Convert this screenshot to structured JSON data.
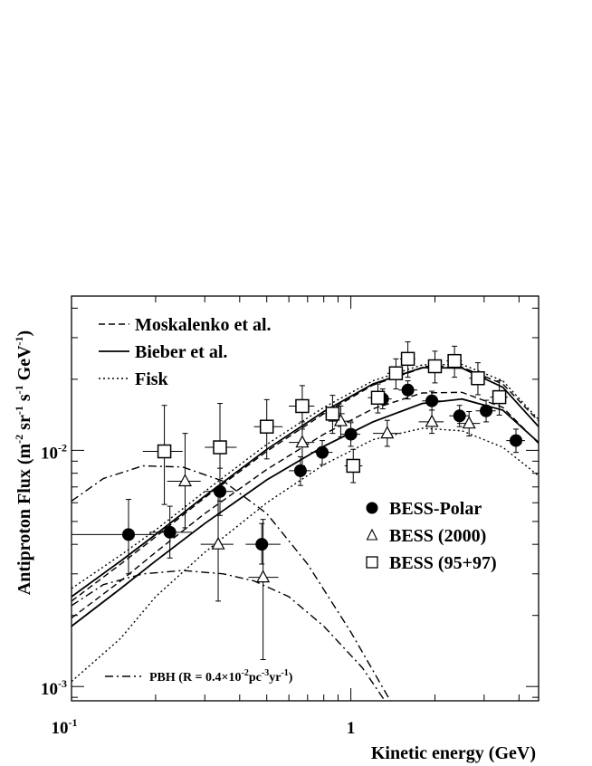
{
  "chart_data": {
    "type": "scatter",
    "title": "",
    "xlabel": "Kinetic energy (GeV)",
    "ylabel": "Antiproton Flux (m-2 sr-1 s-1 GeV-1)",
    "xscale": "log",
    "yscale": "log",
    "xlim": [
      0.1,
      4.7
    ],
    "ylim": [
      0.00087,
      0.045
    ],
    "x_ticks": [
      {
        "value": 0.1,
        "base": "10",
        "exp": "-1"
      },
      {
        "value": 1,
        "base": "1",
        "exp": ""
      }
    ],
    "y_ticks": [
      {
        "value": 0.01,
        "base": "10",
        "exp": "-2"
      },
      {
        "value": 0.001,
        "base": "10",
        "exp": "-3"
      }
    ],
    "grid": false,
    "legend_models": [
      {
        "label": "Moskalenko et al.",
        "style": "dashed"
      },
      {
        "label": "Bieber et al.",
        "style": "solid"
      },
      {
        "label": "Fisk",
        "style": "dotted"
      }
    ],
    "legend_data": [
      {
        "label": "BESS-Polar",
        "marker": "filled-circle"
      },
      {
        "label": "BESS (2000)",
        "marker": "open-triangle"
      },
      {
        "label": "BESS (95+97)",
        "marker": "open-square"
      }
    ],
    "pbh_label": "PBH (R = 0.4×10-2pc-3yr-1)",
    "series": [
      {
        "name": "BESS-Polar",
        "marker": "filled-circle",
        "points": [
          {
            "x": 0.16,
            "y": 0.0044,
            "xlo": 0.1,
            "xhi": 0.2,
            "ylo": 0.003,
            "yhi": 0.0062
          },
          {
            "x": 0.225,
            "y": 0.0045,
            "xlo": 0.19,
            "xhi": 0.27,
            "ylo": 0.0035,
            "yhi": 0.0058
          },
          {
            "x": 0.34,
            "y": 0.0067,
            "xlo": 0.3,
            "xhi": 0.38,
            "ylo": 0.0053,
            "yhi": 0.0084
          },
          {
            "x": 0.48,
            "y": 0.004,
            "xlo": 0.42,
            "xhi": 0.56,
            "ylo": 0.0033,
            "yhi": 0.0049
          },
          {
            "x": 0.66,
            "y": 0.0082,
            "xlo": 0.6,
            "xhi": 0.72,
            "ylo": 0.0071,
            "yhi": 0.0094
          },
          {
            "x": 0.79,
            "y": 0.0098,
            "xlo": 0.72,
            "xhi": 0.86,
            "ylo": 0.0087,
            "yhi": 0.011
          },
          {
            "x": 1.0,
            "y": 0.0117,
            "xlo": 0.92,
            "xhi": 1.08,
            "ylo": 0.0104,
            "yhi": 0.0131
          },
          {
            "x": 1.3,
            "y": 0.0165,
            "xlo": 1.2,
            "xhi": 1.4,
            "ylo": 0.015,
            "yhi": 0.0182
          },
          {
            "x": 1.6,
            "y": 0.018,
            "xlo": 1.48,
            "xhi": 1.73,
            "ylo": 0.0165,
            "yhi": 0.0197
          },
          {
            "x": 1.95,
            "y": 0.0162,
            "xlo": 1.8,
            "xhi": 2.1,
            "ylo": 0.0148,
            "yhi": 0.0178
          },
          {
            "x": 2.45,
            "y": 0.014,
            "xlo": 2.25,
            "xhi": 2.65,
            "ylo": 0.0126,
            "yhi": 0.0155
          },
          {
            "x": 3.05,
            "y": 0.0147,
            "xlo": 2.8,
            "xhi": 3.3,
            "ylo": 0.0132,
            "yhi": 0.0163
          },
          {
            "x": 3.9,
            "y": 0.011,
            "xlo": 3.6,
            "xhi": 4.2,
            "ylo": 0.0098,
            "yhi": 0.0123
          }
        ]
      },
      {
        "name": "BESS (2000)",
        "marker": "open-triangle",
        "points": [
          {
            "x": 0.255,
            "y": 0.0074,
            "xlo": 0.22,
            "xhi": 0.29,
            "ylo": 0.0047,
            "yhi": 0.0118
          },
          {
            "x": 0.335,
            "y": 0.004,
            "xlo": 0.29,
            "xhi": 0.38,
            "ylo": 0.0023,
            "yhi": 0.0068
          },
          {
            "x": 0.485,
            "y": 0.0029,
            "xlo": 0.43,
            "xhi": 0.55,
            "ylo": 0.0013,
            "yhi": 0.0051
          },
          {
            "x": 0.67,
            "y": 0.0108,
            "xlo": 0.6,
            "xhi": 0.74,
            "ylo": 0.0086,
            "yhi": 0.0132
          },
          {
            "x": 0.92,
            "y": 0.0133,
            "xlo": 0.83,
            "xhi": 1.02,
            "ylo": 0.0114,
            "yhi": 0.0154
          },
          {
            "x": 1.35,
            "y": 0.0118,
            "xlo": 1.2,
            "xhi": 1.5,
            "ylo": 0.0104,
            "yhi": 0.0134
          },
          {
            "x": 1.95,
            "y": 0.0132,
            "xlo": 1.75,
            "xhi": 2.15,
            "ylo": 0.0118,
            "yhi": 0.0148
          },
          {
            "x": 2.65,
            "y": 0.013,
            "xlo": 2.4,
            "xhi": 2.9,
            "ylo": 0.0115,
            "yhi": 0.0146
          }
        ]
      },
      {
        "name": "BESS (95+97)",
        "marker": "open-square",
        "points": [
          {
            "x": 0.215,
            "y": 0.0099,
            "xlo": 0.18,
            "xhi": 0.25,
            "ylo": 0.0059,
            "yhi": 0.0155
          },
          {
            "x": 0.34,
            "y": 0.0103,
            "xlo": 0.3,
            "xhi": 0.39,
            "ylo": 0.0061,
            "yhi": 0.0158
          },
          {
            "x": 0.5,
            "y": 0.0126,
            "xlo": 0.45,
            "xhi": 0.57,
            "ylo": 0.0092,
            "yhi": 0.0164
          },
          {
            "x": 0.67,
            "y": 0.0154,
            "xlo": 0.6,
            "xhi": 0.74,
            "ylo": 0.0123,
            "yhi": 0.0188
          },
          {
            "x": 0.86,
            "y": 0.0143,
            "xlo": 0.78,
            "xhi": 0.95,
            "ylo": 0.0118,
            "yhi": 0.0171
          },
          {
            "x": 1.02,
            "y": 0.0086,
            "xlo": 0.95,
            "xhi": 1.1,
            "ylo": 0.0073,
            "yhi": 0.0101
          },
          {
            "x": 1.25,
            "y": 0.0167,
            "xlo": 1.15,
            "xhi": 1.35,
            "ylo": 0.0144,
            "yhi": 0.0191
          },
          {
            "x": 1.45,
            "y": 0.0212,
            "xlo": 1.35,
            "xhi": 1.55,
            "ylo": 0.0182,
            "yhi": 0.0244
          },
          {
            "x": 1.6,
            "y": 0.0244,
            "xlo": 1.5,
            "xhi": 1.7,
            "ylo": 0.0204,
            "yhi": 0.0288
          },
          {
            "x": 2.0,
            "y": 0.0227,
            "xlo": 1.85,
            "xhi": 2.15,
            "ylo": 0.0193,
            "yhi": 0.0263
          },
          {
            "x": 2.35,
            "y": 0.0239,
            "xlo": 2.2,
            "xhi": 2.5,
            "ylo": 0.0204,
            "yhi": 0.0276
          },
          {
            "x": 2.85,
            "y": 0.0202,
            "xlo": 2.65,
            "xhi": 3.05,
            "ylo": 0.0172,
            "yhi": 0.0235
          },
          {
            "x": 3.4,
            "y": 0.0168,
            "xlo": 3.15,
            "xhi": 3.65,
            "ylo": 0.0141,
            "yhi": 0.0197
          }
        ]
      }
    ],
    "model_curves": [
      {
        "name": "Moskalenko et al. (upper)",
        "style": "dashed",
        "x": [
          0.1,
          0.15,
          0.2,
          0.3,
          0.5,
          0.8,
          1.2,
          1.8,
          2.5,
          3.5,
          4.7
        ],
        "y": [
          0.0023,
          0.0033,
          0.0043,
          0.0063,
          0.0099,
          0.0143,
          0.0189,
          0.0223,
          0.0225,
          0.0191,
          0.0133
        ]
      },
      {
        "name": "Moskalenko et al. (lower)",
        "style": "dashed",
        "x": [
          0.1,
          0.15,
          0.2,
          0.3,
          0.5,
          0.8,
          1.2,
          1.8,
          2.5,
          3.5,
          4.7
        ],
        "y": [
          0.00195,
          0.0028,
          0.0037,
          0.0054,
          0.0083,
          0.0117,
          0.015,
          0.0175,
          0.0176,
          0.0152,
          0.0107
        ]
      },
      {
        "name": "Bieber et al. (upper)",
        "style": "solid",
        "x": [
          0.1,
          0.15,
          0.2,
          0.3,
          0.5,
          0.8,
          1.2,
          1.8,
          2.5,
          3.5,
          4.7
        ],
        "y": [
          0.0024,
          0.0034,
          0.0044,
          0.0064,
          0.0101,
          0.0146,
          0.0191,
          0.0224,
          0.0223,
          0.0185,
          0.0126
        ]
      },
      {
        "name": "Bieber et al. (lower)",
        "style": "solid",
        "x": [
          0.1,
          0.15,
          0.2,
          0.3,
          0.5,
          0.8,
          1.2,
          1.8,
          2.5,
          3.5,
          4.7
        ],
        "y": [
          0.0018,
          0.0026,
          0.0034,
          0.0049,
          0.0075,
          0.0104,
          0.0132,
          0.0158,
          0.0165,
          0.0148,
          0.0108
        ]
      },
      {
        "name": "Fisk (upper)",
        "style": "dotted",
        "x": [
          0.1,
          0.15,
          0.2,
          0.3,
          0.5,
          0.8,
          1.2,
          1.8,
          2.5,
          3.5,
          4.7
        ],
        "y": [
          0.0026,
          0.0036,
          0.0046,
          0.0067,
          0.0106,
          0.0152,
          0.0197,
          0.023,
          0.0231,
          0.0197,
          0.0135
        ]
      },
      {
        "name": "Fisk (lower)",
        "style": "dotted",
        "x": [
          0.1,
          0.15,
          0.2,
          0.3,
          0.5,
          0.8,
          1.2,
          1.8,
          2.5,
          3.5,
          4.7
        ],
        "y": [
          0.00105,
          0.0016,
          0.0024,
          0.0037,
          0.006,
          0.0087,
          0.0111,
          0.0124,
          0.0121,
          0.0103,
          0.0078
        ]
      },
      {
        "name": "PBH (upper)",
        "style": "dashdot",
        "x": [
          0.1,
          0.13,
          0.18,
          0.25,
          0.35,
          0.5,
          0.7,
          1.0,
          1.4,
          1.9
        ],
        "y": [
          0.0061,
          0.0076,
          0.0086,
          0.0085,
          0.0074,
          0.0054,
          0.0033,
          0.0017,
          0.00085,
          0.00042
        ]
      },
      {
        "name": "PBH (lower)",
        "style": "dashdot",
        "x": [
          0.1,
          0.13,
          0.18,
          0.25,
          0.35,
          0.45,
          0.6,
          0.8,
          1.1,
          1.5,
          1.9
        ],
        "y": [
          0.0022,
          0.0027,
          0.003,
          0.0031,
          0.003,
          0.0028,
          0.0024,
          0.0018,
          0.0012,
          0.0007,
          0.00042
        ]
      }
    ]
  }
}
